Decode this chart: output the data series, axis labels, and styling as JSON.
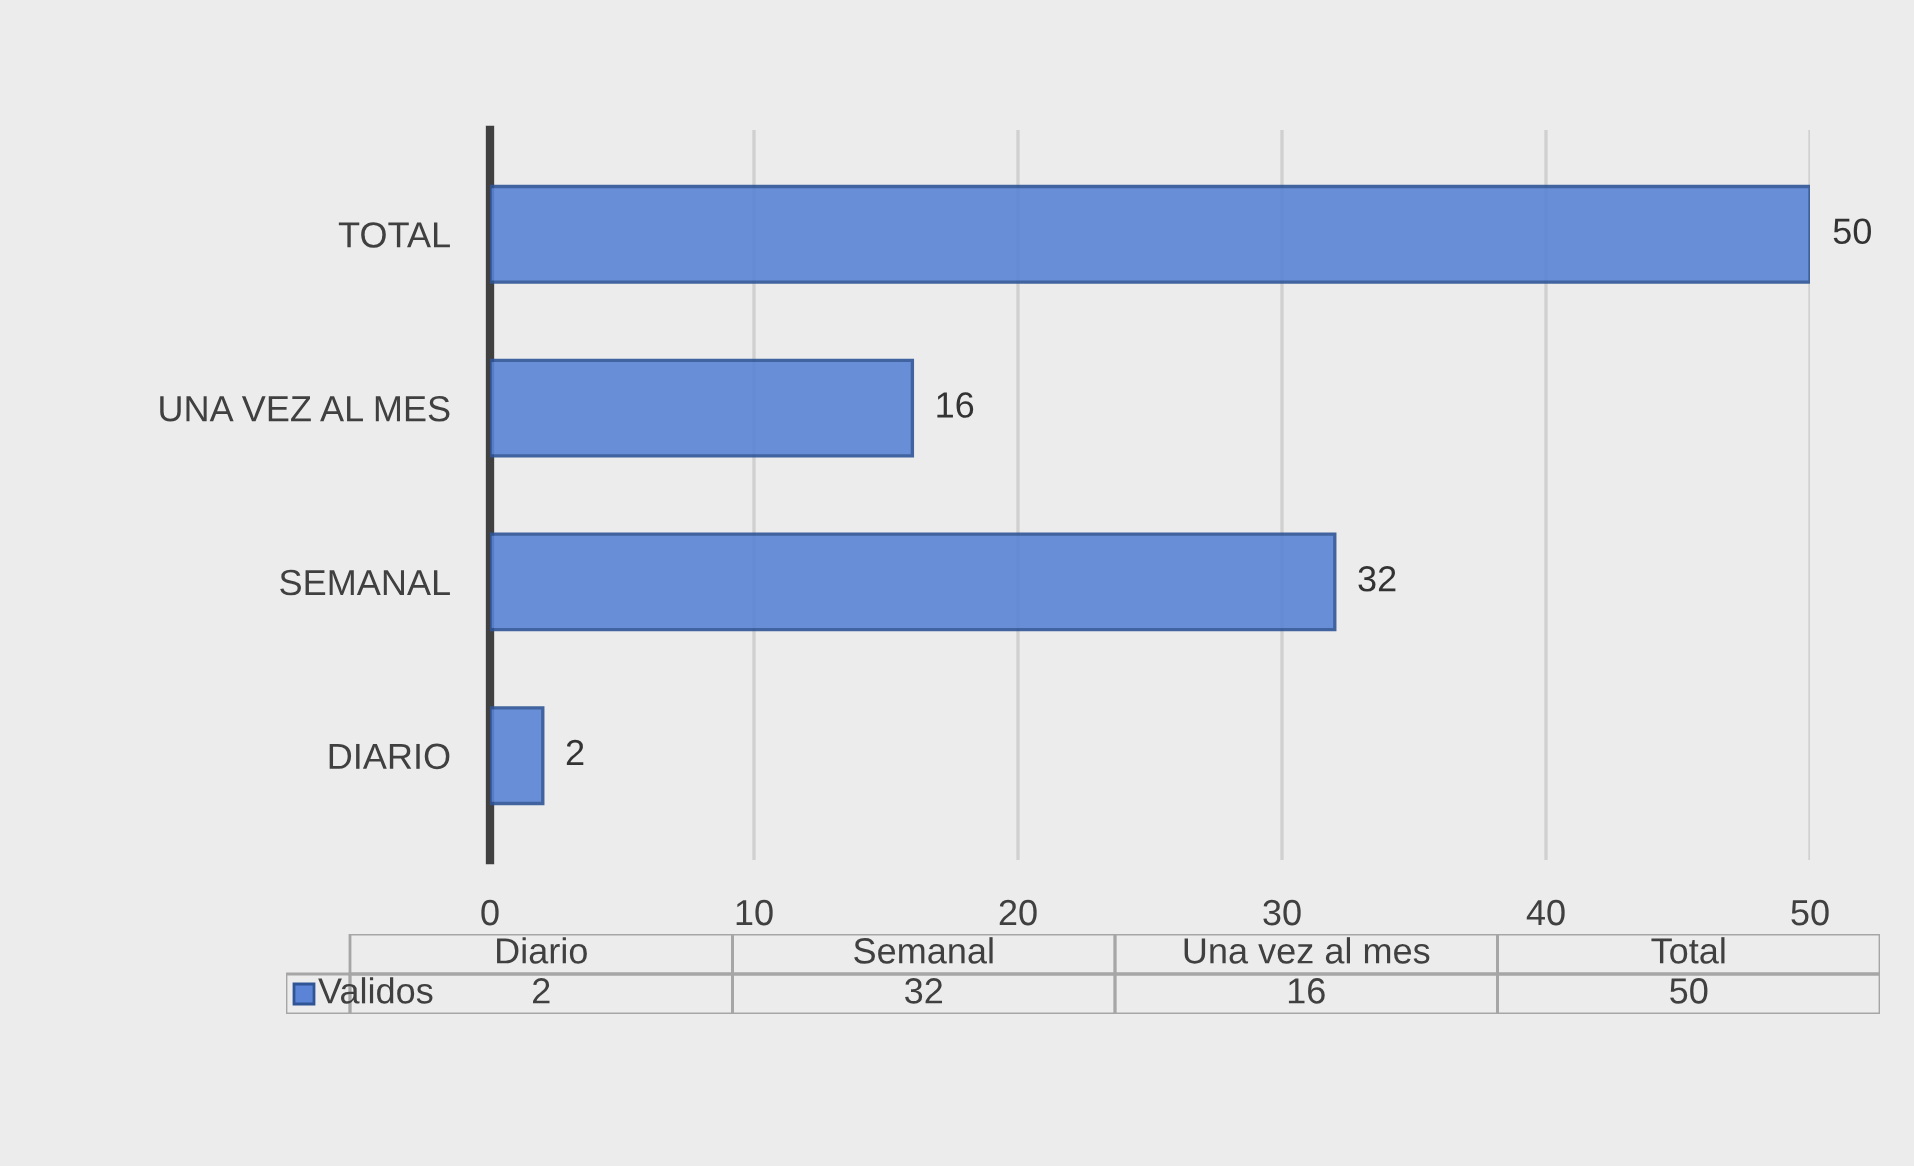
{
  "chart_data": {
    "type": "bar",
    "orientation": "horizontal",
    "categories": [
      "TOTAL",
      "UNA VEZ AL MES",
      "SEMANAL",
      "DIARIO"
    ],
    "series": [
      {
        "name": "Validos",
        "color": "#5b84d6",
        "values": [
          50,
          16,
          32,
          2
        ]
      }
    ],
    "xlim": [
      0,
      50
    ],
    "xticks": [
      0,
      10,
      20,
      30,
      40,
      50
    ],
    "grid": "x",
    "data_labels": true,
    "legend": "bottom",
    "annotations": [
      "Diario",
      "Semanal",
      "Una vez al mes",
      "Total",
      "2",
      "32",
      "16",
      "50"
    ]
  }
}
